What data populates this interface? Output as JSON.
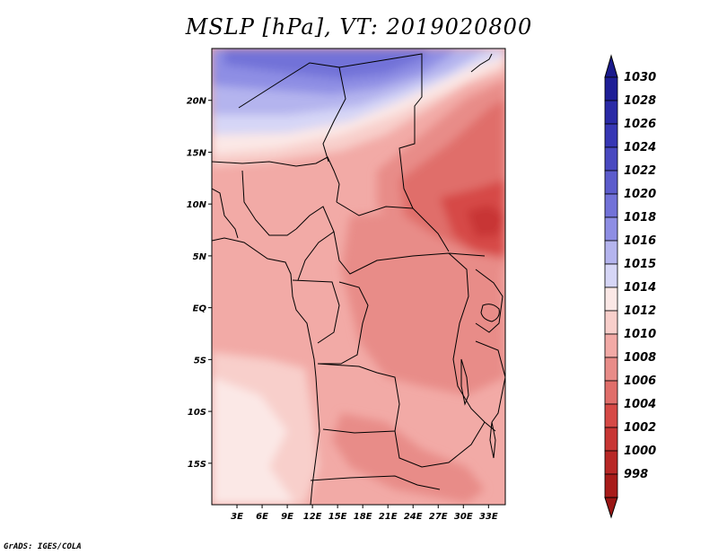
{
  "title": "MSLP [hPa], VT: 2019020800",
  "footer": "GrADS: IGES/COLA",
  "map": {
    "projection": "lat-lon",
    "lon_range": [
      0,
      35
    ],
    "lat_range": [
      -19,
      25
    ],
    "lat_ticks": [
      {
        "value": 20,
        "label": "20N"
      },
      {
        "value": 15,
        "label": "15N"
      },
      {
        "value": 10,
        "label": "10N"
      },
      {
        "value": 5,
        "label": "5N"
      },
      {
        "value": 0,
        "label": "EQ"
      },
      {
        "value": -5,
        "label": "5S"
      },
      {
        "value": -10,
        "label": "10S"
      },
      {
        "value": -15,
        "label": "15S"
      }
    ],
    "lon_ticks": [
      {
        "value": 3,
        "label": "3E"
      },
      {
        "value": 6,
        "label": "6E"
      },
      {
        "value": 9,
        "label": "9E"
      },
      {
        "value": 12,
        "label": "12E"
      },
      {
        "value": 15,
        "label": "15E"
      },
      {
        "value": 18,
        "label": "18E"
      },
      {
        "value": 21,
        "label": "21E"
      },
      {
        "value": 24,
        "label": "24E"
      },
      {
        "value": 27,
        "label": "27E"
      },
      {
        "value": 30,
        "label": "30E"
      },
      {
        "value": 33,
        "label": "33E"
      }
    ]
  },
  "colorbar": {
    "levels": [
      {
        "label": "1030",
        "color": "#1e1e96"
      },
      {
        "label": "1028",
        "color": "#2a2aa6"
      },
      {
        "label": "1026",
        "color": "#3737b4"
      },
      {
        "label": "1024",
        "color": "#4949c0"
      },
      {
        "label": "1022",
        "color": "#5c5ccc"
      },
      {
        "label": "1020",
        "color": "#7272d8"
      },
      {
        "label": "1018",
        "color": "#8e8ee4"
      },
      {
        "label": "1016",
        "color": "#b4b4ee"
      },
      {
        "label": "1015",
        "color": "#d6d6f6"
      },
      {
        "label": "1014",
        "color": "#fbe8e6"
      },
      {
        "label": "1012",
        "color": "#f8cfcb"
      },
      {
        "label": "1010",
        "color": "#f2aaa6"
      },
      {
        "label": "1008",
        "color": "#e88c88"
      },
      {
        "label": "1006",
        "color": "#e06e6a"
      },
      {
        "label": "1004",
        "color": "#d64a46"
      },
      {
        "label": "1002",
        "color": "#c83634"
      },
      {
        "label": "1000",
        "color": "#b82826"
      },
      {
        "label": "998",
        "color": "#a81c1a"
      }
    ],
    "top_extend_color": "#1a1a8c",
    "bottom_extend_color": "#9a1614"
  }
}
